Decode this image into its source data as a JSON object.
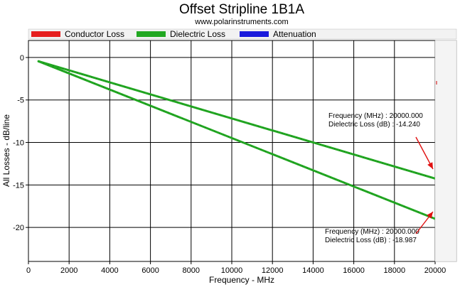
{
  "chart_data": {
    "type": "line",
    "title": "Offset Stripline 1B1A",
    "subtitle": "www.polarinstruments.com",
    "xlabel": "Frequency - MHz",
    "ylabel": "All Losses - dB/line",
    "xlim": [
      0,
      20000
    ],
    "ylim": [
      -24,
      2
    ],
    "x_ticks": [
      0,
      2000,
      4000,
      6000,
      8000,
      10000,
      12000,
      14000,
      16000,
      18000,
      20000
    ],
    "y_ticks": [
      0,
      -5,
      -10,
      -15,
      -20
    ],
    "x_tick_labels": [
      "0",
      "2000",
      "4000",
      "6000",
      "8000",
      "10000",
      "12000",
      "14000",
      "16000",
      "18000",
      "20000"
    ],
    "y_tick_labels": [
      "0",
      "-5",
      "-10",
      "-15",
      "-20"
    ],
    "grid": true,
    "legend": [
      {
        "label": "Conductor Loss",
        "color": "#e61e1e"
      },
      {
        "label": "Dielectric Loss",
        "color": "#22a822"
      },
      {
        "label": "Attenuation",
        "color": "#1a1adc"
      }
    ],
    "series": [
      {
        "x": [
          500,
          20000
        ],
        "y": [
          -0.45,
          -14.24
        ],
        "color": "#22a822"
      },
      {
        "x": [
          500,
          20000
        ],
        "y": [
          -0.45,
          -18.987
        ],
        "color": "#22a822"
      }
    ],
    "annotations": [
      {
        "line1": "Frequency (MHz) : 20000.000",
        "line2": "Dielectric Loss (dB) : -14.240",
        "x": 20000,
        "y": -14.24
      },
      {
        "line1": "Frequency (MHz) : 20000.000",
        "line2": "Dielectric Loss (dB) : -18.987",
        "x": 20000,
        "y": -18.987
      }
    ]
  }
}
